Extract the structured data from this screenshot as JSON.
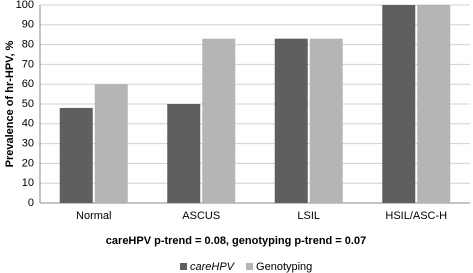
{
  "chart_data": {
    "type": "bar",
    "y_label": "Prevalence of hr-HPV, %",
    "annotation": "careHPV p-trend = 0.08, genotyping p-trend = 0.07",
    "categories": [
      "Normal",
      "ASCUS",
      "LSIL",
      "HSIL/ASC-H"
    ],
    "series": [
      {
        "name": "careHPV",
        "color": "#5f5f5f",
        "values": [
          48,
          50,
          83,
          100
        ]
      },
      {
        "name": "Genotyping",
        "color": "#b5b5b5",
        "values": [
          60,
          83,
          83,
          100
        ]
      }
    ],
    "ylim": [
      0,
      100
    ],
    "yticks": [
      0,
      10,
      20,
      30,
      40,
      50,
      60,
      70,
      80,
      90,
      100
    ],
    "grid": true,
    "legend": "bottom"
  }
}
